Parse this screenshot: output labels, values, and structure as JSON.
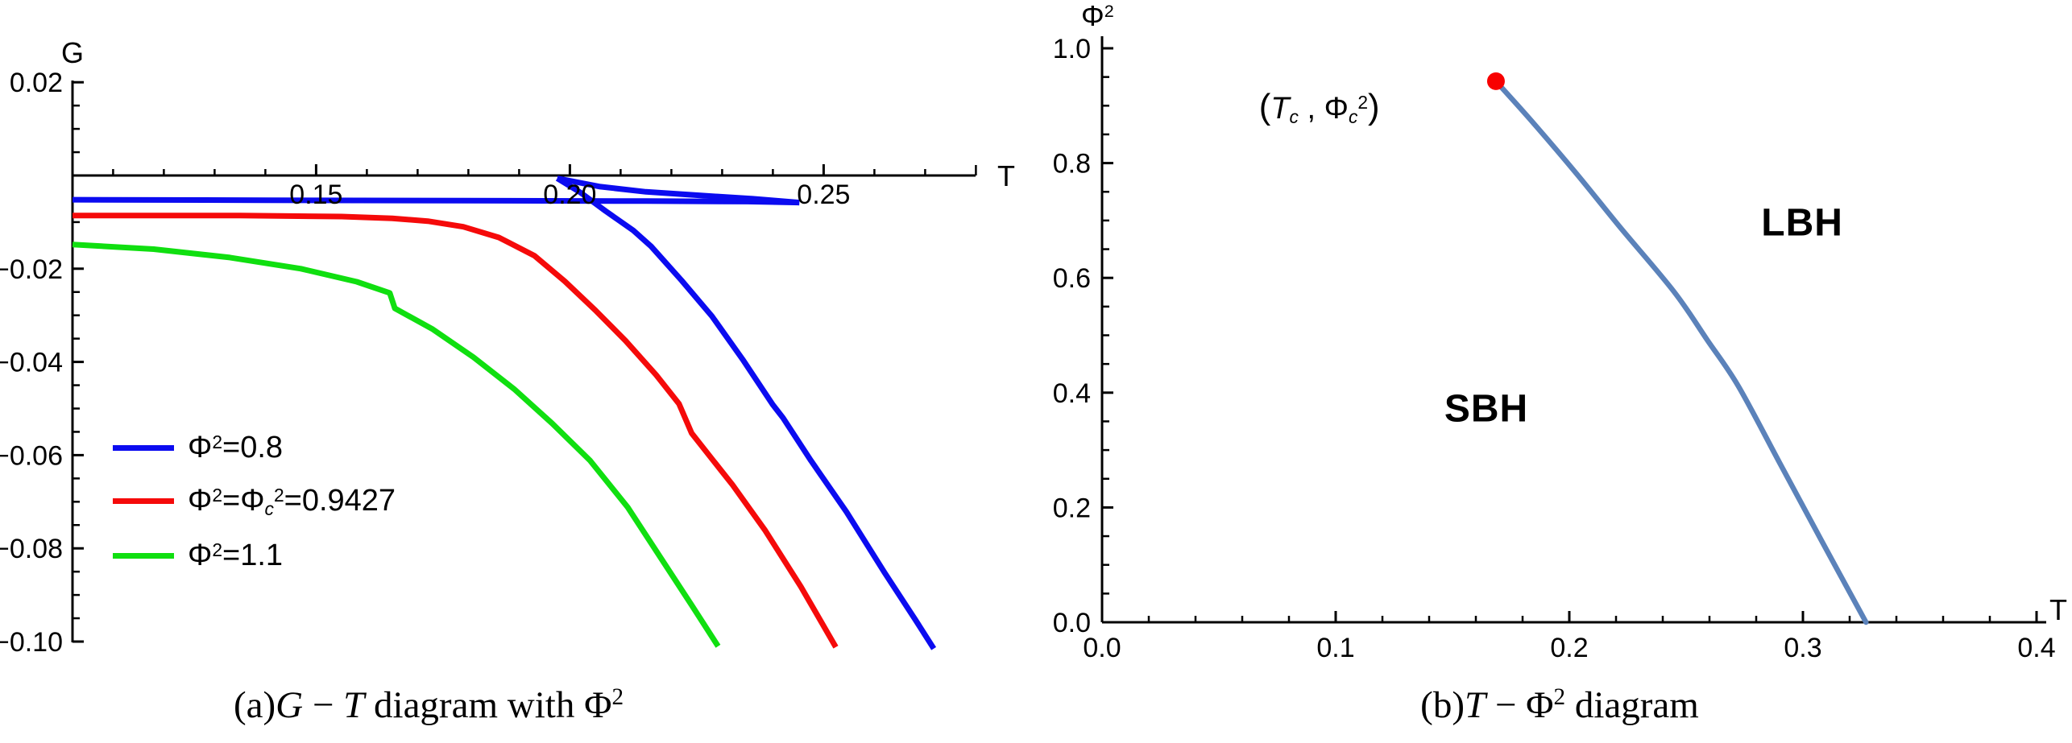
{
  "figure_a": {
    "caption": {
      "prefix": "(a)",
      "var_g": "G",
      "dash": " − ",
      "var_t": "T",
      "middle": " diagram with ",
      "phi": "Φ",
      "phi_sup": "2"
    },
    "x_axis_label": "T",
    "y_axis_label": "G"
  },
  "figure_b": {
    "caption": {
      "prefix": "(b)",
      "var_t": "T",
      "dash": " − ",
      "phi": "Φ",
      "phi_sup": "2",
      "rest": " diagram"
    },
    "x_axis_label": "T",
    "y_axis_label": {
      "phi": "Φ",
      "sup": "2"
    },
    "annotation": {
      "open": "(",
      "t": "T",
      "t_sub": "c",
      "comma": " , ",
      "phi": "Φ",
      "phi_sub": "c",
      "phi_sup": "2",
      "close": ")"
    },
    "region_labels": {
      "sbh": "SBH",
      "lbh": "LBH"
    }
  },
  "chart_data": [
    {
      "type": "line",
      "title": "G-T diagram with Phi^2",
      "xlabel": "T",
      "ylabel": "G",
      "xlim": [
        0.102,
        0.2825
      ],
      "ylim": [
        -0.1005,
        0.0212
      ],
      "grid": false,
      "legend_position": "lower-left",
      "x_ticks_major": [
        {
          "v": 0.15,
          "label": "0.15"
        },
        {
          "v": 0.2,
          "label": "0.20"
        },
        {
          "v": 0.25,
          "label": "0.25"
        }
      ],
      "x_ticks_minor": [
        0.11,
        0.12,
        0.13,
        0.14,
        0.16,
        0.17,
        0.18,
        0.19,
        0.21,
        0.22,
        0.23,
        0.24,
        0.26,
        0.27
      ],
      "x_axis_end_tick": 0.28,
      "y_ticks_major": [
        {
          "v": 0.02,
          "label": "0.02"
        },
        {
          "v": -0.02,
          "label": "−0.02"
        },
        {
          "v": -0.04,
          "label": "−0.04"
        },
        {
          "v": -0.06,
          "label": "−0.06"
        },
        {
          "v": -0.08,
          "label": "−0.08"
        },
        {
          "v": -0.1,
          "label": "−0.10"
        }
      ],
      "y_ticks_minor": [
        0.015,
        0.01,
        0.005,
        -0.005,
        -0.01,
        -0.015,
        -0.025,
        -0.03,
        -0.035,
        -0.045,
        -0.05,
        -0.055,
        -0.065,
        -0.07,
        -0.075,
        -0.085,
        -0.09,
        -0.095
      ],
      "series": [
        {
          "name": "Φ²=0.8",
          "color": "#0b0bf0",
          "width": 7,
          "label_parts": [
            [
              "t",
              "Φ"
            ],
            [
              "sup",
              "2"
            ],
            [
              "t",
              "=0.8"
            ]
          ],
          "segments": [
            [
              [
                0.102,
                -0.0052
              ],
              [
                0.14,
                -0.0053
              ],
              [
                0.18,
                -0.0054
              ],
              [
                0.215,
                -0.0055
              ],
              [
                0.235,
                -0.0056
              ],
              [
                0.2452,
                -0.0058
              ]
            ],
            [
              [
                0.2452,
                -0.0058
              ],
              [
                0.236,
                -0.005
              ],
              [
                0.226,
                -0.0043
              ],
              [
                0.215,
                -0.0035
              ],
              [
                0.206,
                -0.0024
              ],
              [
                0.1975,
                -0.0006
              ]
            ],
            [
              [
                0.1975,
                -0.0006
              ],
              [
                0.202,
                -0.0036
              ],
              [
                0.207,
                -0.0076
              ],
              [
                0.2125,
                -0.0118
              ],
              [
                0.216,
                -0.0152
              ],
              [
                0.222,
                -0.0225
              ],
              [
                0.228,
                -0.0302
              ],
              [
                0.234,
                -0.0394
              ],
              [
                0.24,
                -0.0492
              ],
              [
                0.242,
                -0.052
              ],
              [
                0.2475,
                -0.0612
              ],
              [
                0.2545,
                -0.0722
              ],
              [
                0.262,
                -0.0852
              ],
              [
                0.268,
                -0.0952
              ],
              [
                0.2717,
                -0.1015
              ]
            ]
          ]
        },
        {
          "name": "Φ²=Φc²=0.9427",
          "color": "#f50a0a",
          "width": 7,
          "label_parts": [
            [
              "t",
              "Φ"
            ],
            [
              "sup",
              "2"
            ],
            [
              "t",
              "=Φ"
            ],
            [
              "sub",
              "c"
            ],
            [
              "sup",
              "2"
            ],
            [
              "t",
              "=0.9427"
            ]
          ],
          "segments": [
            [
              [
                0.102,
                -0.0086
              ],
              [
                0.135,
                -0.0086
              ],
              [
                0.155,
                -0.0088
              ],
              [
                0.165,
                -0.0092
              ],
              [
                0.172,
                -0.0098
              ],
              [
                0.179,
                -0.011
              ],
              [
                0.186,
                -0.0133
              ],
              [
                0.193,
                -0.0172
              ],
              [
                0.199,
                -0.0227
              ],
              [
                0.205,
                -0.0289
              ],
              [
                0.211,
                -0.0355
              ],
              [
                0.217,
                -0.0428
              ],
              [
                0.2215,
                -0.049
              ],
              [
                0.224,
                -0.0553
              ],
              [
                0.229,
                -0.0622
              ],
              [
                0.232,
                -0.0663
              ],
              [
                0.2385,
                -0.0762
              ],
              [
                0.2455,
                -0.0882
              ],
              [
                0.2524,
                -0.1012
              ]
            ]
          ]
        },
        {
          "name": "Φ²=1.1",
          "color": "#10df10",
          "width": 7,
          "label_parts": [
            [
              "t",
              "Φ"
            ],
            [
              "sup",
              "2"
            ],
            [
              "t",
              "=1.1"
            ]
          ],
          "segments": [
            [
              [
                0.102,
                -0.0148
              ],
              [
                0.118,
                -0.0158
              ],
              [
                0.133,
                -0.0176
              ],
              [
                0.147,
                -0.02
              ],
              [
                0.158,
                -0.0228
              ],
              [
                0.1645,
                -0.0252
              ],
              [
                0.1655,
                -0.0285
              ],
              [
                0.173,
                -0.033
              ],
              [
                0.181,
                -0.039
              ],
              [
                0.189,
                -0.0458
              ],
              [
                0.1965,
                -0.0532
              ],
              [
                0.204,
                -0.0612
              ],
              [
                0.2114,
                -0.0712
              ],
              [
                0.218,
                -0.0822
              ],
              [
                0.224,
                -0.0922
              ],
              [
                0.2292,
                -0.101
              ]
            ]
          ]
        }
      ]
    },
    {
      "type": "line",
      "title": "T-Phi^2 phase diagram",
      "xlabel": "T",
      "ylabel": "Φ²",
      "xlim": [
        0.0,
        0.404
      ],
      "ylim": [
        0.0,
        1.021
      ],
      "grid": false,
      "x_ticks_major": [
        {
          "v": 0.0,
          "label": "0.0"
        },
        {
          "v": 0.1,
          "label": "0.1"
        },
        {
          "v": 0.2,
          "label": "0.2"
        },
        {
          "v": 0.3,
          "label": "0.3"
        },
        {
          "v": 0.4,
          "label": "0.4"
        }
      ],
      "x_ticks_minor": [
        0.02,
        0.04,
        0.06,
        0.08,
        0.12,
        0.14,
        0.16,
        0.18,
        0.22,
        0.24,
        0.26,
        0.28,
        0.32,
        0.34,
        0.36,
        0.38
      ],
      "y_ticks_major": [
        {
          "v": 0.0,
          "label": "0.0"
        },
        {
          "v": 0.2,
          "label": "0.2"
        },
        {
          "v": 0.4,
          "label": "0.4"
        },
        {
          "v": 0.6,
          "label": "0.6"
        },
        {
          "v": 0.8,
          "label": "0.8"
        },
        {
          "v": 1.0,
          "label": "1.0"
        }
      ],
      "y_ticks_minor": [
        0.05,
        0.1,
        0.15,
        0.25,
        0.3,
        0.35,
        0.45,
        0.5,
        0.55,
        0.65,
        0.7,
        0.75,
        0.85,
        0.9,
        0.95
      ],
      "coexistence_curve": {
        "color": "#5b82ba",
        "width": 6.5,
        "points": [
          [
            0.1686,
            0.9427
          ],
          [
            0.185,
            0.868
          ],
          [
            0.203,
            0.782
          ],
          [
            0.222,
            0.687
          ],
          [
            0.2448,
            0.576
          ],
          [
            0.259,
            0.492
          ],
          [
            0.2724,
            0.411
          ],
          [
            0.29,
            0.278
          ],
          [
            0.308,
            0.142
          ],
          [
            0.327,
            0.0
          ]
        ]
      },
      "critical_point": {
        "T": 0.1686,
        "phi2": 0.9427,
        "color": "#f80000",
        "radius": 11
      },
      "regions": [
        {
          "key": "sbh",
          "label": "SBH",
          "T": 0.1645,
          "phi2": 0.372
        },
        {
          "key": "lbh",
          "label": "LBH",
          "T": 0.2997,
          "phi2": 0.696
        }
      ],
      "annotation_position": {
        "T": 0.093,
        "phi2": 0.898
      }
    }
  ]
}
